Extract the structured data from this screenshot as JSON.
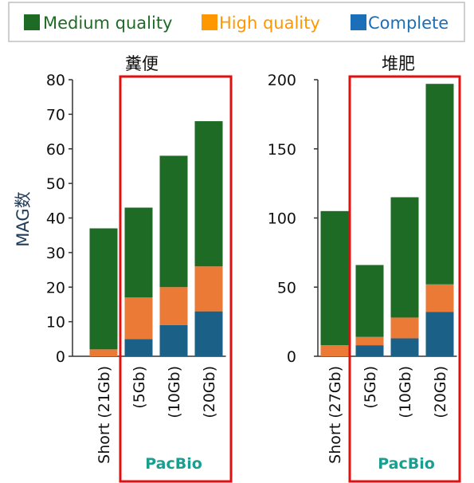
{
  "colors": {
    "medium": "#1e6b25",
    "high": "#eb7a37",
    "complete": "#1b6087",
    "highlight": "#e01010",
    "group_label": "#1a9e8f"
  },
  "legend": {
    "items": [
      {
        "label": "Medium quality",
        "color": "#1e6b25",
        "text_color": "#1e6b25"
      },
      {
        "label": "High quality",
        "color": "#ff9800",
        "text_color": "#ff9800"
      },
      {
        "label": "Complete",
        "color": "#1a6fb8",
        "text_color": "#1a6fb8"
      }
    ]
  },
  "chart_data": [
    {
      "type": "bar",
      "stacked": true,
      "title": "糞便",
      "ylabel": "MAG数",
      "ylim": [
        0,
        80
      ],
      "yticks": [
        0,
        10,
        20,
        30,
        40,
        50,
        60,
        70,
        80
      ],
      "categories": [
        "Short (21Gb)",
        "(5Gb)",
        "(10Gb)",
        "(20Gb)"
      ],
      "series": [
        {
          "name": "Complete",
          "values": [
            0,
            5,
            9,
            13
          ]
        },
        {
          "name": "High quality",
          "values": [
            2,
            12,
            11,
            13
          ]
        },
        {
          "name": "Medium quality",
          "values": [
            35,
            26,
            38,
            42
          ]
        }
      ],
      "totals": [
        37,
        43,
        58,
        68
      ],
      "highlight_group": {
        "label": "PacBio",
        "categories": [
          "(5Gb)",
          "(10Gb)",
          "(20Gb)"
        ]
      }
    },
    {
      "type": "bar",
      "stacked": true,
      "title": "堆肥",
      "ylabel": "",
      "ylim": [
        0,
        200
      ],
      "yticks": [
        0,
        50,
        100,
        150,
        200
      ],
      "categories": [
        "Short (27Gb)",
        "(5Gb)",
        "(10Gb)",
        "(20Gb)"
      ],
      "series": [
        {
          "name": "Complete",
          "values": [
            0,
            8,
            13,
            32
          ]
        },
        {
          "name": "High quality",
          "values": [
            8,
            6,
            15,
            20
          ]
        },
        {
          "name": "Medium quality",
          "values": [
            97,
            52,
            87,
            145
          ]
        }
      ],
      "totals": [
        105,
        66,
        115,
        197
      ],
      "highlight_group": {
        "label": "PacBio",
        "categories": [
          "(5Gb)",
          "(10Gb)",
          "(20Gb)"
        ]
      }
    }
  ]
}
